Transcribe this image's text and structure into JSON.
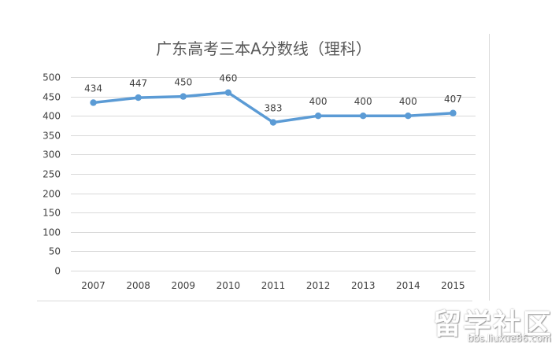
{
  "chart_data": {
    "type": "line",
    "title": "广东高考三本A分数线（理科）",
    "categories": [
      "2007",
      "2008",
      "2009",
      "2010",
      "2011",
      "2012",
      "2013",
      "2014",
      "2015"
    ],
    "series": [
      {
        "values": [
          434,
          447,
          450,
          460,
          383,
          400,
          400,
          400,
          407
        ]
      }
    ],
    "data_labels": [
      "434",
      "447",
      "450",
      "460",
      "383",
      "400",
      "400",
      "400",
      "407"
    ],
    "yticks": [
      "0",
      "50",
      "100",
      "150",
      "200",
      "250",
      "300",
      "350",
      "400",
      "450",
      "500"
    ],
    "ylim": [
      0,
      500
    ],
    "grid": true,
    "line_color": "#5b9bd5"
  },
  "watermark": {
    "text": "留学社区",
    "url": "bbs.liuxue86.com"
  }
}
